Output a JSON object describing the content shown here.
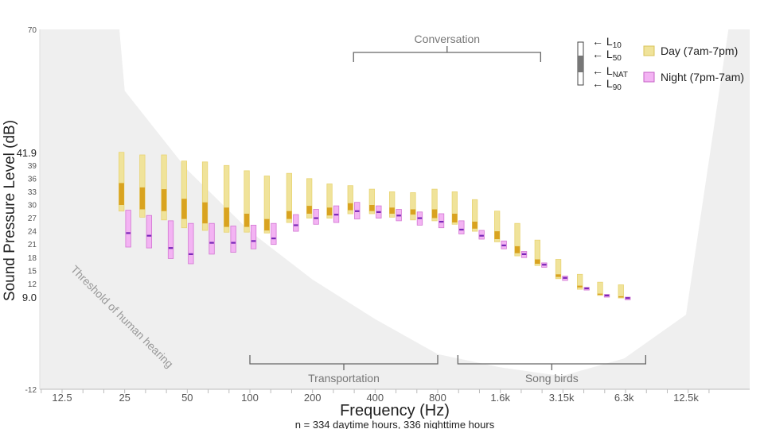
{
  "chart_data": {
    "type": "bar",
    "xlabel": "Frequency (Hz)",
    "ylabel": "Sound Pressure Level (dB)",
    "caption": "n = 334 daytime hours, 336 nighttime hours",
    "ylim": [
      -12,
      70
    ],
    "y_ticks": [
      "70",
      "-12"
    ],
    "y_ticks_small": [
      "39",
      "36",
      "33",
      "30",
      "27",
      "24",
      "21",
      "18",
      "15",
      "12"
    ],
    "y_highlight": [
      {
        "value": 41.9,
        "label": "41.9"
      },
      {
        "value": 9.0,
        "label": "9.0"
      }
    ],
    "x_ticks": [
      {
        "band": 12.5,
        "label": "12.5"
      },
      {
        "band": 25,
        "label": "25"
      },
      {
        "band": 50,
        "label": "50"
      },
      {
        "band": 100,
        "label": "100"
      },
      {
        "band": 200,
        "label": "200"
      },
      {
        "band": 400,
        "label": "400"
      },
      {
        "band": 800,
        "label": "800"
      },
      {
        "band": 1600,
        "label": "1.6k"
      },
      {
        "band": 3150,
        "label": "3.15k"
      },
      {
        "band": 6300,
        "label": "6.3k"
      },
      {
        "band": 12500,
        "label": "12.5k"
      }
    ],
    "bands": [
      25,
      31.5,
      40,
      50,
      63,
      80,
      100,
      125,
      160,
      200,
      250,
      315,
      400,
      500,
      630,
      800,
      1000,
      1250,
      1600,
      2000,
      2500,
      3150,
      4000,
      5000,
      6300
    ],
    "series": [
      {
        "name": "Day (7am-7pm)",
        "color": "#f0e39a",
        "median_color": "#d9a320",
        "L10": [
          42.0,
          41.4,
          41.4,
          40.0,
          39.8,
          39.0,
          37.8,
          36.6,
          37.2,
          36.0,
          34.8,
          34.4,
          33.6,
          33.0,
          32.8,
          33.6,
          33.0,
          31.2,
          28.6,
          25.8,
          22.0,
          17.6,
          14.2,
          12.4,
          11.8
        ],
        "L50": [
          35.0,
          34.0,
          33.6,
          31.4,
          30.6,
          29.4,
          28.0,
          26.8,
          28.6,
          29.8,
          29.4,
          30.4,
          30.0,
          29.4,
          29.0,
          29.0,
          28.0,
          26.2,
          24.0,
          20.6,
          17.6,
          14.2,
          11.6,
          9.8,
          9.2
        ],
        "LNAT": [
          30.0,
          29.0,
          28.6,
          26.8,
          25.8,
          25.0,
          25.0,
          24.2,
          26.8,
          28.0,
          27.6,
          28.8,
          28.6,
          28.0,
          27.8,
          27.0,
          26.0,
          24.6,
          22.2,
          19.0,
          16.6,
          13.6,
          11.2,
          9.6,
          9.0
        ],
        "L90": [
          28.6,
          27.2,
          26.6,
          24.8,
          24.2,
          23.8,
          23.8,
          23.6,
          26.0,
          27.0,
          27.0,
          28.0,
          28.0,
          27.2,
          26.6,
          26.4,
          25.6,
          24.0,
          21.6,
          18.4,
          16.2,
          13.2,
          10.8,
          9.4,
          8.8
        ]
      },
      {
        "name": "Night (7pm-7am)",
        "color": "#f3b3f3",
        "median_color": "#7a28b8",
        "L10": [
          28.8,
          27.6,
          26.4,
          25.8,
          25.8,
          25.2,
          25.4,
          25.8,
          27.8,
          29.0,
          29.8,
          30.6,
          29.8,
          29.0,
          28.4,
          28.0,
          26.4,
          24.2,
          21.8,
          19.4,
          16.8,
          13.8,
          11.2,
          9.6,
          9.0
        ],
        "L50": [
          23.6,
          23.0,
          20.2,
          18.8,
          21.4,
          21.4,
          21.8,
          22.4,
          25.4,
          27.0,
          27.8,
          28.6,
          28.4,
          27.6,
          27.0,
          26.2,
          24.4,
          23.0,
          20.8,
          18.8,
          16.4,
          13.4,
          11.0,
          9.4,
          8.8
        ],
        "LNAT": [
          23.2,
          22.6,
          20.0,
          18.6,
          21.0,
          21.0,
          21.6,
          22.2,
          25.2,
          26.8,
          27.6,
          28.4,
          28.2,
          27.4,
          26.8,
          26.0,
          24.2,
          22.8,
          20.6,
          18.6,
          16.2,
          13.2,
          10.8,
          9.2,
          8.6
        ],
        "L90": [
          20.4,
          20.2,
          17.8,
          16.6,
          18.8,
          19.2,
          20.0,
          21.0,
          24.0,
          25.6,
          26.0,
          26.8,
          27.0,
          26.4,
          25.4,
          24.8,
          23.4,
          22.2,
          20.0,
          18.0,
          15.8,
          12.8,
          10.6,
          9.0,
          8.4
        ]
      }
    ],
    "threshold": {
      "label": "Threshold of human hearing",
      "x": [
        12.5,
        25,
        50,
        100,
        200,
        400,
        800,
        1600,
        3150,
        6300,
        12500,
        20000
      ],
      "y": [
        70,
        56,
        38,
        24,
        13,
        4,
        -4,
        -7,
        -9,
        -5,
        5,
        70
      ]
    },
    "ranges": [
      {
        "label": "Conversation",
        "from": 315,
        "to": 2500,
        "position": "top"
      },
      {
        "label": "Transportation",
        "from": 100,
        "to": 800,
        "position": "bottom"
      },
      {
        "label": "Song birds",
        "from": 1000,
        "to": 8000,
        "position": "bottom"
      }
    ],
    "legend": {
      "placement": "top-right",
      "metrics": [
        {
          "base": "L",
          "sub": "10"
        },
        {
          "base": "L",
          "sub": "50"
        },
        {
          "base": "L",
          "sub": "NAT"
        },
        {
          "base": "L",
          "sub": "90"
        }
      ]
    }
  }
}
